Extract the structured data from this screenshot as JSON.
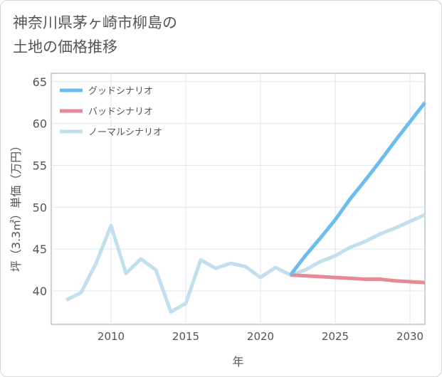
{
  "chart_data": {
    "type": "line",
    "title": "神奈川県茅ヶ崎市柳島の土地の価格推移",
    "title_lines": [
      "神奈川県茅ヶ崎市柳島の",
      "土地の価格推移"
    ],
    "xlabel": "年",
    "ylabel": "坪（3.3㎡）単価（万円）",
    "xlim": [
      2006,
      2031
    ],
    "ylim": [
      36,
      66
    ],
    "xticks": [
      2010,
      2015,
      2020,
      2025,
      2030
    ],
    "yticks": [
      40,
      45,
      50,
      55,
      60,
      65
    ],
    "legend_position": "top-left",
    "series": [
      {
        "name": "グッドシナリオ",
        "color": "#6cbcef",
        "x": [
          2022,
          2023,
          2024,
          2025,
          2026,
          2027,
          2028,
          2029,
          2030,
          2031
        ],
        "values": [
          41.9,
          44.2,
          46.3,
          48.5,
          51.0,
          53.2,
          55.5,
          57.9,
          60.2,
          62.5
        ]
      },
      {
        "name": "バッドシナリオ",
        "color": "#e58a92",
        "x": [
          2022,
          2023,
          2024,
          2025,
          2026,
          2027,
          2028,
          2029,
          2030,
          2031
        ],
        "values": [
          41.9,
          41.8,
          41.7,
          41.6,
          41.5,
          41.4,
          41.4,
          41.2,
          41.1,
          41.0
        ]
      },
      {
        "name": "ノーマルシナリオ",
        "color": "#c2dfee",
        "x": [
          2007,
          2008,
          2009,
          2010,
          2011,
          2012,
          2013,
          2014,
          2015,
          2016,
          2017,
          2018,
          2019,
          2020,
          2021,
          2022,
          2023,
          2024,
          2025,
          2026,
          2027,
          2028,
          2029,
          2030,
          2031
        ],
        "values": [
          38.9,
          39.8,
          43.3,
          47.8,
          42.1,
          43.8,
          42.5,
          37.5,
          38.5,
          43.7,
          42.7,
          43.3,
          42.9,
          41.6,
          42.8,
          41.9,
          42.5,
          43.5,
          44.2,
          45.2,
          45.9,
          46.8,
          47.5,
          48.3,
          49.1
        ]
      }
    ]
  }
}
